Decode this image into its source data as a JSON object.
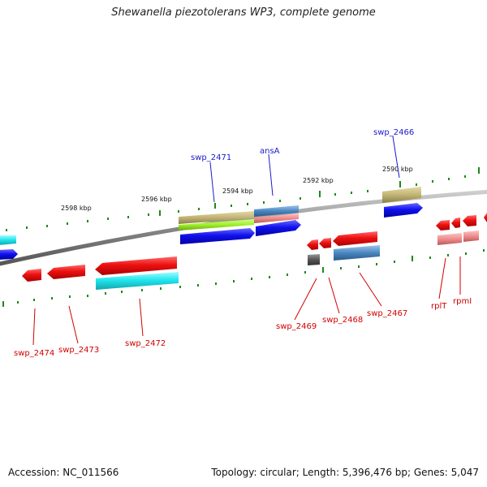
{
  "title": "Shewanella piezotolerans WP3, complete genome",
  "footer": {
    "accession": "Accession: NC_011566",
    "summary": "Topology: circular; Length: 5,396,476 bp; Genes: 5,047"
  },
  "scale_labels": [
    "2598 kbp",
    "2596 kbp",
    "2594 kbp",
    "2592 kbp",
    "2590 kbp"
  ],
  "gene_labels": {
    "swp_2474": "swp_2474",
    "swp_2473": "swp_2473",
    "swp_2472": "swp_2472",
    "swp_2471": "swp_2471",
    "ansA": "ansA",
    "swp_2469": "swp_2469",
    "swp_2468": "swp_2468",
    "swp_2467": "swp_2467",
    "swp_2466": "swp_2466",
    "rplT": "rplT",
    "rpmI": "rpmI"
  },
  "colors": {
    "red": "#ee1111",
    "blue": "#1111ee",
    "cyan": "#22e6ee",
    "olive": "#c2b474",
    "lime": "#9ef02a",
    "steel": "#4a86c0",
    "pink": "#ee8c8c",
    "gray": "#555555",
    "tick": "#1a8a1a",
    "backbone": "#888888"
  }
}
